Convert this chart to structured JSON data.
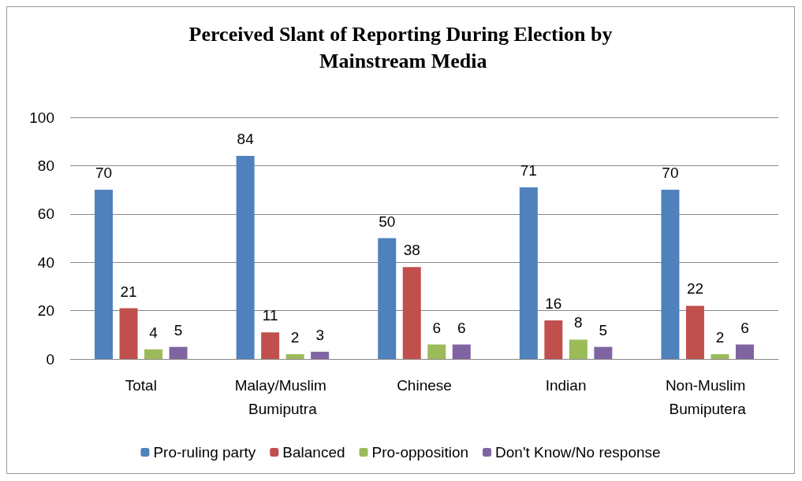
{
  "chart_data": {
    "type": "bar",
    "title": "Perceived Slant of Reporting During Election by Mainstream Media",
    "categories": [
      "Total",
      "Malay/Muslim Bumiputra",
      "Chinese",
      "Indian",
      "Non-Muslim Bumiputera"
    ],
    "series": [
      {
        "name": "Pro-ruling party",
        "color": "#4f81bd",
        "values": [
          70,
          84,
          50,
          71,
          70
        ]
      },
      {
        "name": "Balanced",
        "color": "#c0504d",
        "values": [
          21,
          11,
          38,
          16,
          22
        ]
      },
      {
        "name": "Pro-opposition",
        "color": "#9bbb59",
        "values": [
          4,
          2,
          6,
          8,
          2
        ]
      },
      {
        "name": "Don't Know/No response",
        "color": "#8064a2",
        "values": [
          5,
          3,
          6,
          5,
          6
        ]
      }
    ],
    "ylim": [
      0,
      100
    ],
    "yticks": [
      0,
      20,
      40,
      60,
      80,
      100
    ],
    "grid": "y",
    "legend": "bottom",
    "data_labels": true
  }
}
